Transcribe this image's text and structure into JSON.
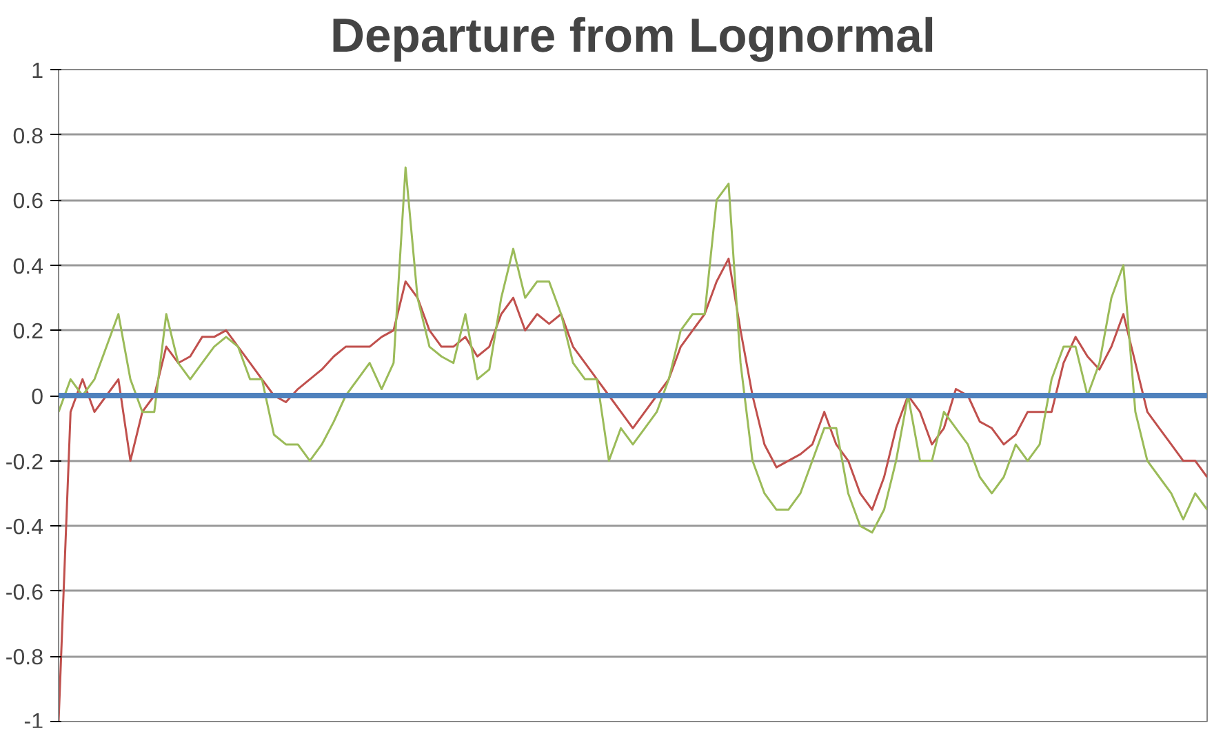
{
  "chart_data": {
    "type": "line",
    "title": "Departure from Lognormal",
    "categories": [
      null,
      null,
      null,
      null,
      null,
      null,
      null,
      null,
      null,
      null,
      null,
      null,
      null,
      null,
      null,
      null,
      null,
      null,
      null,
      null,
      null,
      null,
      null,
      null,
      null,
      null,
      null,
      null,
      null,
      null,
      null,
      null,
      null,
      null,
      null,
      null,
      null,
      null,
      null,
      null,
      null,
      null,
      null,
      null,
      null,
      null,
      null,
      null,
      null,
      null,
      null,
      null,
      null,
      null,
      null,
      null,
      null,
      null,
      null,
      null,
      null,
      null,
      null,
      null,
      null,
      null,
      null,
      null,
      null,
      null,
      null,
      null,
      null,
      null,
      null,
      null,
      null,
      null,
      null,
      null,
      null,
      null,
      null,
      null,
      null,
      null,
      null,
      null,
      null,
      null,
      null,
      null,
      null,
      null,
      null,
      null,
      null
    ],
    "series": [
      {
        "color": "#c0504d",
        "values": [
          -1.0,
          -0.05,
          0.05,
          -0.05,
          0.0,
          0.05,
          -0.2,
          -0.05,
          0.0,
          0.15,
          0.1,
          0.12,
          0.18,
          0.18,
          0.2,
          0.15,
          0.1,
          0.05,
          0.0,
          -0.02,
          0.02,
          0.05,
          0.08,
          0.12,
          0.15,
          0.15,
          0.15,
          0.18,
          0.2,
          0.35,
          0.3,
          0.2,
          0.15,
          0.15,
          0.18,
          0.12,
          0.15,
          0.25,
          0.3,
          0.2,
          0.25,
          0.22,
          0.25,
          0.15,
          0.1,
          0.05,
          0.0,
          -0.05,
          -0.1,
          -0.05,
          0.0,
          0.05,
          0.15,
          0.2,
          0.25,
          0.35,
          0.42,
          0.2,
          0.0,
          -0.15,
          -0.22,
          -0.2,
          -0.18,
          -0.15,
          -0.05,
          -0.15,
          -0.2,
          -0.3,
          -0.35,
          -0.25,
          -0.1,
          0.0,
          -0.05,
          -0.15,
          -0.1,
          0.02,
          0.0,
          -0.08,
          -0.1,
          -0.15,
          -0.12,
          -0.05,
          -0.05,
          -0.05,
          0.1,
          0.18,
          0.12,
          0.08,
          0.15,
          0.25,
          0.1,
          -0.05,
          -0.1,
          -0.15,
          -0.2,
          -0.2,
          -0.25
        ]
      },
      {
        "color": "#9bbb59",
        "values": [
          -0.05,
          0.05,
          0.0,
          0.05,
          0.15,
          0.25,
          0.05,
          -0.05,
          -0.05,
          0.25,
          0.1,
          0.05,
          0.1,
          0.15,
          0.18,
          0.15,
          0.05,
          0.05,
          -0.12,
          -0.15,
          -0.15,
          -0.2,
          -0.15,
          -0.08,
          0.0,
          0.05,
          0.1,
          0.02,
          0.1,
          0.7,
          0.3,
          0.15,
          0.12,
          0.1,
          0.25,
          0.05,
          0.08,
          0.3,
          0.45,
          0.3,
          0.35,
          0.35,
          0.25,
          0.1,
          0.05,
          0.05,
          -0.2,
          -0.1,
          -0.15,
          -0.1,
          -0.05,
          0.05,
          0.2,
          0.25,
          0.25,
          0.6,
          0.65,
          0.1,
          -0.2,
          -0.3,
          -0.35,
          -0.35,
          -0.3,
          -0.2,
          -0.1,
          -0.1,
          -0.3,
          -0.4,
          -0.42,
          -0.35,
          -0.2,
          0.0,
          -0.2,
          -0.2,
          -0.05,
          -0.1,
          -0.15,
          -0.25,
          -0.3,
          -0.25,
          -0.15,
          -0.2,
          -0.15,
          0.05,
          0.15,
          0.15,
          0.0,
          0.1,
          0.3,
          0.4,
          -0.05,
          -0.2,
          -0.25,
          -0.3,
          -0.38,
          -0.3,
          -0.35
        ]
      }
    ],
    "ylim": [
      -1,
      1
    ],
    "yticks": [
      -1,
      {
        "value": -0.8,
        "label": "-0.8"
      },
      {
        "value": -0.6,
        "label": "-0.6"
      },
      {
        "value": -0.4,
        "label": "-0.4"
      },
      {
        "value": -0.2,
        "label": "-0.2"
      },
      0,
      {
        "value": 0.2,
        "label": "0.2"
      },
      {
        "value": 0.4,
        "label": "0.4"
      },
      {
        "value": 0.6,
        "label": "0.6"
      },
      {
        "value": 0.8,
        "label": "0.8"
      },
      1
    ],
    "ref_lines": [
      {
        "axis": "y",
        "value": 0,
        "color": "#4f81bd"
      }
    ],
    "grid": "y",
    "tick_labels": "y",
    "marker": "none",
    "line_style": "solid"
  }
}
